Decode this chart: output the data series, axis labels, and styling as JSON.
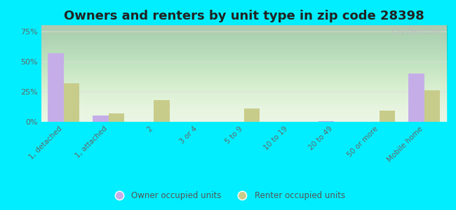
{
  "title": "Owners and renters by unit type in zip code 28398",
  "categories": [
    "1, detached",
    "1, attached",
    "2",
    "3 or 4",
    "5 to 9",
    "10 to 19",
    "20 to 49",
    "50 or more",
    "Mobile home"
  ],
  "owner_values": [
    57,
    5,
    0,
    0,
    0,
    0,
    0.5,
    0,
    40
  ],
  "renter_values": [
    32,
    7,
    18,
    0,
    11,
    0,
    0,
    9,
    26
  ],
  "owner_color": "#c5aee8",
  "renter_color": "#c8cc8a",
  "background_outer": "#00eeff",
  "yticks": [
    0,
    25,
    50,
    75
  ],
  "ylim": [
    0,
    80
  ],
  "bar_width": 0.35,
  "title_fontsize": 13
}
